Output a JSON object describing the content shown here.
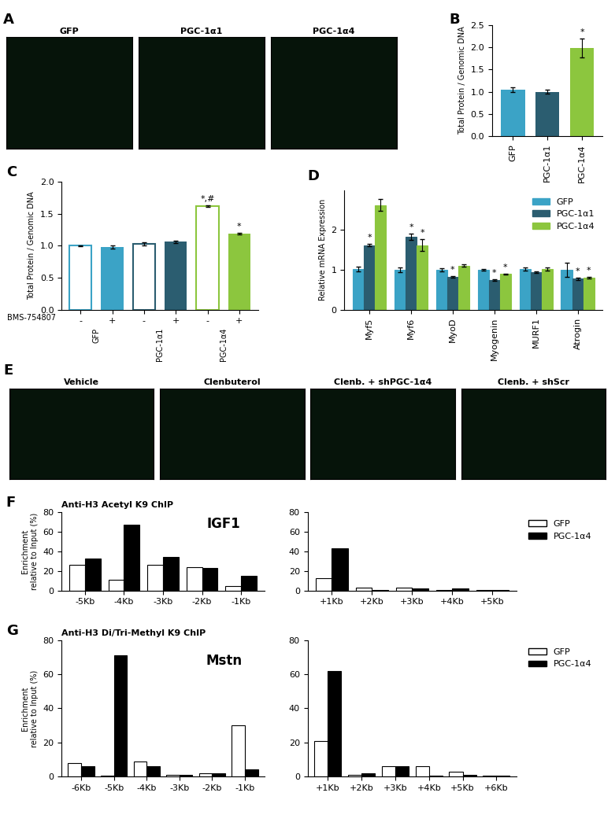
{
  "chart_data": [
    {
      "type": "image",
      "panel": "A",
      "labels": [
        "GFP",
        "PGC-1α1",
        "PGC-1α4"
      ]
    },
    {
      "type": "bar",
      "panel": "B",
      "categories": [
        "GFP",
        "PGC-1α1",
        "PGC-1α4"
      ],
      "values": [
        1.05,
        1.0,
        1.98
      ],
      "errors": [
        0.05,
        0.04,
        0.22
      ],
      "annotations": [
        null,
        null,
        "*"
      ],
      "colors": [
        "#3ba3c6",
        "#2b5d70",
        "#8cc63e"
      ],
      "y_label": "Total Protein / Genomic DNA",
      "ylim": [
        0,
        2.5
      ],
      "yticks": [
        {
          "value": 0,
          "label": "0.0"
        },
        {
          "value": 0.5,
          "label": "0.5"
        },
        {
          "value": 1,
          "label": "1.0"
        },
        {
          "value": 1.5,
          "label": "1.5"
        },
        {
          "value": 2,
          "label": "2.0"
        },
        {
          "value": 2.5,
          "label": "2.5"
        }
      ]
    },
    {
      "type": "bar",
      "panel": "C",
      "categories": [
        "-",
        "+",
        "-",
        "+",
        "-",
        "+"
      ],
      "groups": [
        "GFP",
        "PGC-1α1",
        "PGC-1α4"
      ],
      "x_label": "BMS-754807",
      "values": [
        1.0,
        0.98,
        1.03,
        1.06,
        1.62,
        1.19
      ],
      "errors": [
        0.01,
        0.02,
        0.02,
        0.02,
        0.01,
        0.01
      ],
      "annotations": [
        null,
        null,
        null,
        null,
        "*,#",
        "*"
      ],
      "colors": [
        "#3ba3c6",
        "#3ba3c6",
        "#2b5d70",
        "#2b5d70",
        "#8cc63e",
        "#8cc63e"
      ],
      "y_label": "Total Protein / Genomic DNA",
      "ylim": [
        0,
        2.0
      ],
      "yticks": [
        {
          "value": 0,
          "label": "0.0"
        },
        {
          "value": 0.5,
          "label": "0.5"
        },
        {
          "value": 1,
          "label": "1.0"
        },
        {
          "value": 1.5,
          "label": "1.5"
        },
        {
          "value": 2,
          "label": "2.0"
        }
      ]
    },
    {
      "type": "bar",
      "panel": "D",
      "categories": [
        "Myf5",
        "Myf6",
        "MyoD",
        "Myogenin",
        "MURF1",
        "Atrogin"
      ],
      "series": [
        {
          "name": "GFP",
          "color": "#3ba3c6",
          "values": [
            1.02,
            1.0,
            1.0,
            1.0,
            1.02,
            1.0
          ],
          "errors": [
            0.06,
            0.06,
            0.03,
            0.02,
            0.04,
            0.18
          ],
          "annotations": [
            null,
            null,
            null,
            null,
            null,
            null
          ]
        },
        {
          "name": "PGC-1α1",
          "color": "#2b5d70",
          "values": [
            1.62,
            1.82,
            0.82,
            0.75,
            0.95,
            0.78
          ],
          "errors": [
            0.03,
            0.08,
            0.02,
            0.02,
            0.02,
            0.03
          ],
          "annotations": [
            "*",
            "*",
            "*",
            "*",
            null,
            "*"
          ]
        },
        {
          "name": "PGC-1α4",
          "color": "#8cc63e",
          "values": [
            2.62,
            1.62,
            1.1,
            0.9,
            1.02,
            0.8
          ],
          "errors": [
            0.15,
            0.15,
            0.03,
            0.01,
            0.03,
            0.02
          ],
          "annotations": [
            null,
            "*",
            null,
            "*",
            null,
            "*"
          ]
        }
      ],
      "y_label": "Relative mRNA Expression",
      "ylim": [
        0,
        3
      ],
      "yticks": [
        0,
        1,
        2
      ],
      "legend": "upper right"
    },
    {
      "type": "image",
      "panel": "E",
      "labels": [
        "Vehicle",
        "Clenbuterol",
        "Clenb. + shPGC-1α4",
        "Clenb. + shScr"
      ]
    },
    {
      "type": "bar",
      "panel": "F",
      "title": "Anti-H3 Acetyl K9 ChIP",
      "annotation": "IGF1",
      "y_label": "Enrichment\nrelative to Input (%)",
      "categories": [
        "-5Kb",
        "-4Kb",
        "-3Kb",
        "-2Kb",
        "-1Kb"
      ],
      "series": [
        {
          "name": "GFP",
          "color": "#ffffff",
          "values": [
            26,
            11,
            26,
            24,
            5
          ]
        },
        {
          "name": "PGC-1α4",
          "color": "#000000",
          "values": [
            33,
            67,
            34,
            23,
            15
          ]
        }
      ],
      "ylim": [
        0,
        80
      ],
      "yticks": [
        0,
        20,
        40,
        60,
        80
      ]
    },
    {
      "type": "bar",
      "categories": [
        "+1Kb",
        "+2Kb",
        "+3Kb",
        "+4Kb",
        "+5Kb"
      ],
      "series": [
        {
          "name": "GFP",
          "color": "#ffffff",
          "values": [
            13,
            3,
            3,
            1,
            0.5
          ]
        },
        {
          "name": "PGC-1α4",
          "color": "#000000",
          "values": [
            43,
            1,
            2,
            2,
            0.5
          ]
        }
      ],
      "ylim": [
        0,
        80
      ],
      "yticks": [
        0,
        20,
        40,
        60,
        80
      ],
      "legend": "upper left"
    },
    {
      "type": "bar",
      "panel": "G",
      "title": "Anti-H3 Di/Tri-Methyl K9 ChIP",
      "annotation": "Mstn",
      "y_label": "Enrichment\nrelative to Input (%)",
      "categories": [
        "-6Kb",
        "-5Kb",
        "-4Kb",
        "-3Kb",
        "-2Kb",
        "-1Kb"
      ],
      "series": [
        {
          "name": "GFP",
          "color": "#ffffff",
          "values": [
            8,
            0.5,
            9,
            1,
            2,
            30
          ]
        },
        {
          "name": "PGC-1α4",
          "color": "#000000",
          "values": [
            6,
            71,
            6,
            1,
            2,
            4
          ]
        }
      ],
      "ylim": [
        0,
        80
      ],
      "yticks": [
        0,
        20,
        40,
        60,
        80
      ]
    },
    {
      "type": "bar",
      "categories": [
        "+1Kb",
        "+2Kb",
        "+3Kb",
        "+4Kb",
        "+5Kb",
        "+6Kb"
      ],
      "series": [
        {
          "name": "GFP",
          "color": "#ffffff",
          "values": [
            21,
            1,
            6,
            6,
            3,
            0.5
          ]
        },
        {
          "name": "PGC-1α4",
          "color": "#000000",
          "values": [
            62,
            2,
            6,
            0.5,
            1,
            0.3
          ]
        }
      ],
      "ylim": [
        0,
        80
      ],
      "yticks": [
        0,
        20,
        40,
        60,
        80
      ],
      "legend": "upper left"
    }
  ]
}
